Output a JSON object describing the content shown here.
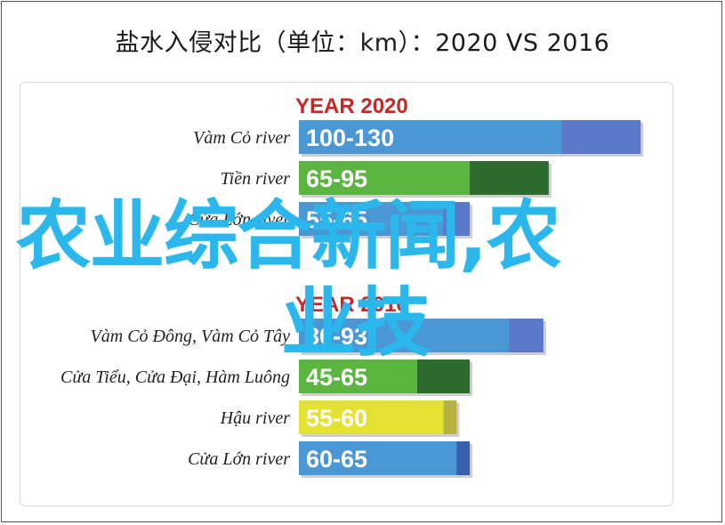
{
  "page_title": "盐水入侵对比（单位：km）：2020 VS 2016",
  "watermark": {
    "line1": "农业综合新闻,农",
    "line2": "业技"
  },
  "chart_data": {
    "type": "bar",
    "unit": "km",
    "scale_max": 135,
    "groups": [
      {
        "title": "YEAR 2020",
        "rows": [
          {
            "label": "Vàm Cỏ river",
            "range_text": "100-130",
            "low": 100,
            "high": 130,
            "color_main": "#4a97d3",
            "color_extra": "#5b78c9"
          },
          {
            "label": "Tiền river",
            "range_text": "65-95",
            "low": 65,
            "high": 95,
            "color_main": "#5cb540",
            "color_extra": "#2e6b2f"
          },
          {
            "label": "Cửa Lớn river",
            "range_text": "55-65",
            "low": 55,
            "high": 65,
            "color_main": "#4a97d3",
            "color_extra": "#5b78c9"
          }
        ]
      },
      {
        "title": "YEAR 2016",
        "rows": [
          {
            "label": "Vàm Cỏ Đông, Vàm Cỏ Tây",
            "range_text": "80-93",
            "low": 80,
            "high": 93,
            "color_main": "#4a97d3",
            "color_extra": "#5b78c9"
          },
          {
            "label": "Cửa Tiểu, Cửa Đại, Hàm Luông",
            "range_text": "45-65",
            "low": 45,
            "high": 65,
            "color_main": "#5cb540",
            "color_extra": "#2e6b2f"
          },
          {
            "label": "Hậu river",
            "range_text": "55-60",
            "low": 55,
            "high": 60,
            "color_main": "#e3e232",
            "color_extra": "#b6b342"
          },
          {
            "label": "Cửa Lớn river",
            "range_text": "60-65",
            "low": 60,
            "high": 65,
            "color_main": "#4a97d3",
            "color_extra": "#3a5fb0"
          }
        ]
      }
    ],
    "title_color": "#c62828"
  }
}
